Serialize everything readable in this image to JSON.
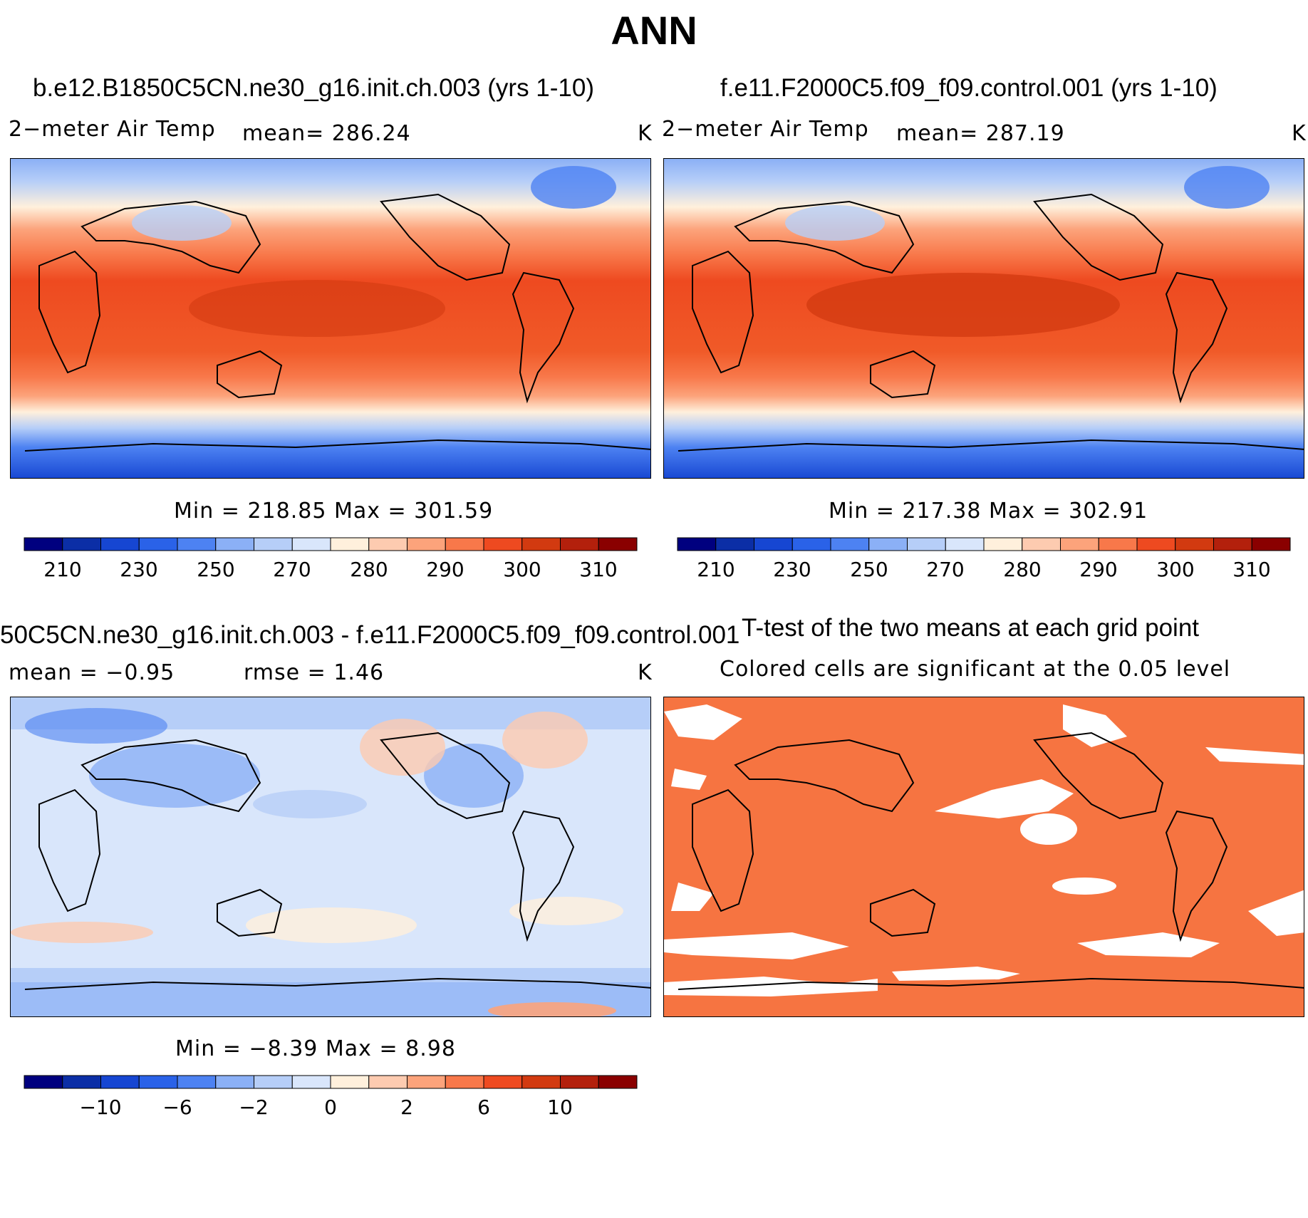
{
  "figure": {
    "title": "ANN",
    "panels": {
      "model": {
        "case_title": "b.e12.B1850C5CN.ne30_g16.init.ch.003 (yrs 1-10)",
        "variable": "2−meter Air Temp",
        "mean_text": "mean=  286.24",
        "units": "K",
        "minmax_text": "Min  =  218.85  Max  =  301.59"
      },
      "control": {
        "case_title": "f.e11.F2000C5.f09_f09.control.001 (yrs 1-10)",
        "variable": "2−meter Air Temp",
        "mean_text": "mean=  287.19",
        "units": "K",
        "minmax_text": "Min  =  217.38  Max  =  302.91"
      },
      "difference": {
        "case_title": "50C5CN.ne30_g16.init.ch.003 - f.e11.F2000C5.f09_f09.control.001",
        "mean_text": "mean  =     −0.95",
        "rmse_text": "rmse  =      1.46",
        "units": "K",
        "minmax_text": "Min  =     −8.39  Max  =       8.98"
      },
      "ttest": {
        "title": "T-test of the two means at each grid point",
        "subtitle": "Colored cells are significant at the 0.05 level"
      }
    },
    "colorbar_colors": [
      "#00007f",
      "#0b2ea6",
      "#1646d2",
      "#2a62e8",
      "#4d82f2",
      "#8bb0f6",
      "#b6cef8",
      "#d9e6fb",
      "#fff0dc",
      "#fdcbb0",
      "#fca37b",
      "#f8784a",
      "#ee4a20",
      "#d23a10",
      "#b3200c",
      "#8a0000"
    ],
    "colorbar_abs_labels": [
      "210",
      "230",
      "250",
      "270",
      "280",
      "290",
      "300",
      "310"
    ],
    "colorbar_diff_labels": [
      "−10",
      "−6",
      "−2",
      "0",
      "2",
      "6",
      "10"
    ],
    "significant_color": "#f67441"
  }
}
